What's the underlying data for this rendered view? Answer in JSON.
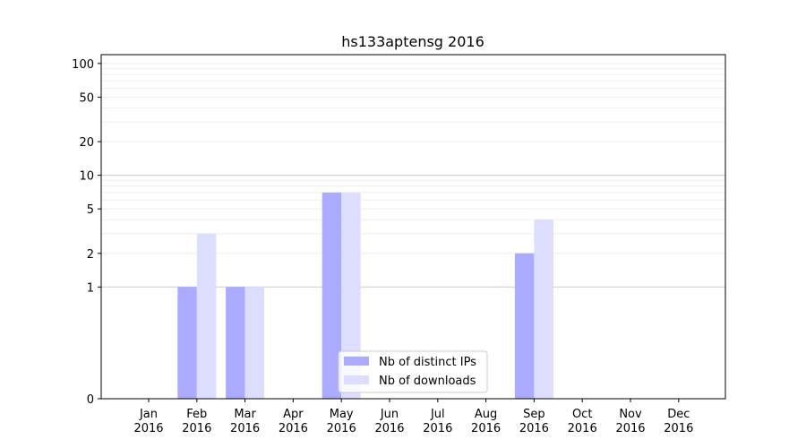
{
  "chart_data": {
    "type": "bar",
    "title": "hs133aptensg 2016",
    "xlabel": "",
    "ylabel": "",
    "yscale": "symlog",
    "ylim": [
      0,
      120
    ],
    "y_ticks": [
      {
        "value": 0,
        "label": "0"
      },
      {
        "value": 1,
        "label": "1"
      },
      {
        "value": 2,
        "label": "2"
      },
      {
        "value": 5,
        "label": "5"
      },
      {
        "value": 10,
        "label": "10"
      },
      {
        "value": 20,
        "label": "20"
      },
      {
        "value": 50,
        "label": "50"
      },
      {
        "value": 100,
        "label": "100"
      }
    ],
    "categories": [
      [
        "Jan",
        "2016"
      ],
      [
        "Feb",
        "2016"
      ],
      [
        "Mar",
        "2016"
      ],
      [
        "Apr",
        "2016"
      ],
      [
        "May",
        "2016"
      ],
      [
        "Jun",
        "2016"
      ],
      [
        "Jul",
        "2016"
      ],
      [
        "Aug",
        "2016"
      ],
      [
        "Sep",
        "2016"
      ],
      [
        "Oct",
        "2016"
      ],
      [
        "Nov",
        "2016"
      ],
      [
        "Dec",
        "2016"
      ]
    ],
    "series": [
      {
        "name": "Nb of distinct IPs",
        "color": "#aaaaff",
        "values": [
          0,
          1,
          1,
          0,
          7,
          0,
          0,
          0,
          2,
          0,
          0,
          0
        ]
      },
      {
        "name": "Nb of downloads",
        "color": "#ddddff",
        "values": [
          0,
          3,
          1,
          0,
          7,
          0,
          0,
          0,
          4,
          0,
          0,
          0
        ]
      }
    ],
    "grid": true,
    "legend": {
      "position": "lower-center"
    }
  }
}
